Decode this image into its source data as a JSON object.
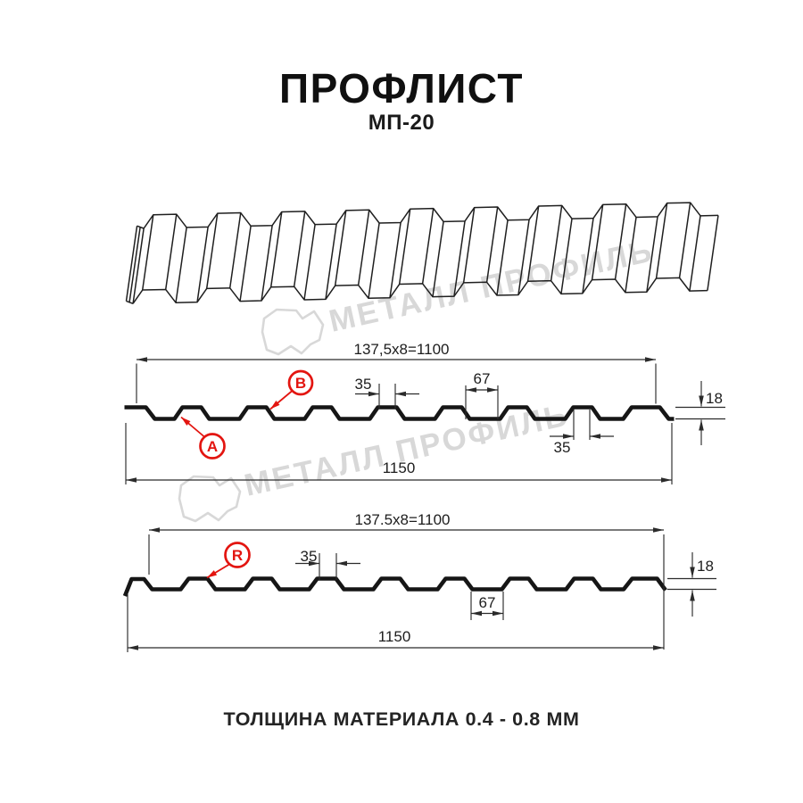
{
  "title": "ПРОФЛИСТ",
  "subtitle": "МП-20",
  "footer": "ТОЛЩИНА МАТЕРИАЛА 0.4 - 0.8 ММ",
  "watermark": {
    "brand": "МЕТАЛЛ ПРОФИЛЬ",
    "color": "#d8d8d8"
  },
  "colors": {
    "ink": "#161616",
    "dim_lines": "#2b2b2b",
    "red": "#e31510"
  },
  "diagram_a": {
    "name": "A-side cross-section",
    "coverage": "137,5x8=1100",
    "crest_top_width": "35",
    "valley_width": "67",
    "profile_height": "18",
    "crest_top_width_right": "35",
    "overall_width": "1150",
    "labels": {
      "a": "A",
      "b": "B"
    }
  },
  "diagram_r": {
    "name": "R-side cross-section",
    "coverage": "137.5x8=1100",
    "crest_top_width": "35",
    "valley_width": "67",
    "profile_height": "18",
    "overall_width": "1150",
    "labels": {
      "r": "R"
    }
  }
}
